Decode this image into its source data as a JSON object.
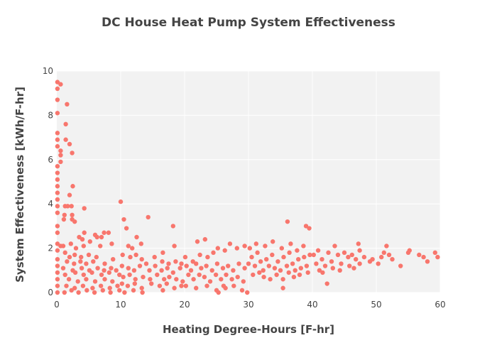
{
  "chart_data": {
    "type": "scatter",
    "title": "DC House Heat Pump System Effectiveness",
    "xlabel": "Heating Degree-Hours [F-hr]",
    "ylabel": "System Effectiveness [kWh/F-hr]",
    "xlim": [
      0,
      60
    ],
    "ylim": [
      0,
      10
    ],
    "xticks": [
      0,
      10,
      20,
      30,
      40,
      50,
      60
    ],
    "yticks": [
      0,
      2,
      4,
      6,
      8,
      10
    ],
    "grid": true,
    "legend": "none",
    "colors": {
      "marker": "#f8766d",
      "plot_bg": "#f2f2f2",
      "grid": "#ffffff",
      "text": "#444444"
    },
    "series": [
      {
        "points": [
          [
            0.1,
            9.5
          ],
          [
            0.1,
            9.2
          ],
          [
            0.6,
            9.4
          ],
          [
            0.1,
            8.7
          ],
          [
            0.1,
            8.1
          ],
          [
            1.6,
            8.5
          ],
          [
            1.4,
            7.6
          ],
          [
            0.1,
            7.2
          ],
          [
            0.1,
            6.9
          ],
          [
            1.4,
            6.9
          ],
          [
            0.1,
            6.6
          ],
          [
            2.0,
            6.7
          ],
          [
            0.6,
            6.4
          ],
          [
            2.4,
            6.3
          ],
          [
            0.6,
            6.2
          ],
          [
            0.6,
            5.9
          ],
          [
            0.1,
            5.7
          ],
          [
            0.1,
            5.4
          ],
          [
            0.1,
            5.1
          ],
          [
            0.1,
            4.8
          ],
          [
            2.5,
            4.8
          ],
          [
            0.1,
            4.5
          ],
          [
            2.0,
            4.4
          ],
          [
            0.1,
            4.2
          ],
          [
            0.1,
            3.9
          ],
          [
            1.3,
            3.9
          ],
          [
            1.7,
            3.9
          ],
          [
            2.3,
            3.9
          ],
          [
            4.3,
            3.8
          ],
          [
            0.1,
            3.6
          ],
          [
            1.2,
            3.5
          ],
          [
            2.4,
            3.5
          ],
          [
            1.1,
            3.3
          ],
          [
            2.4,
            3.3
          ],
          [
            2.8,
            3.2
          ],
          [
            0.1,
            3.0
          ],
          [
            0.1,
            2.7
          ],
          [
            4.3,
            2.7
          ],
          [
            6.0,
            2.6
          ],
          [
            7.4,
            2.7
          ],
          [
            8.1,
            2.7
          ],
          [
            3.5,
            2.5
          ],
          [
            4.0,
            2.4
          ],
          [
            5.2,
            2.3
          ],
          [
            6.3,
            2.5
          ],
          [
            7.0,
            2.5
          ],
          [
            0.1,
            2.2
          ],
          [
            0.6,
            2.1
          ],
          [
            1.0,
            2.1
          ],
          [
            2.2,
            2.2
          ],
          [
            3.0,
            2.0
          ],
          [
            4.2,
            2.1
          ],
          [
            6.8,
            2.1
          ],
          [
            8.6,
            2.2
          ],
          [
            0.1,
            1.9
          ],
          [
            1.3,
            1.8
          ],
          [
            2.0,
            1.6
          ],
          [
            2.8,
            1.7
          ],
          [
            3.8,
            1.6
          ],
          [
            5.0,
            1.7
          ],
          [
            6.2,
            1.6
          ],
          [
            0.1,
            1.5
          ],
          [
            1.6,
            1.4
          ],
          [
            2.7,
            1.3
          ],
          [
            3.7,
            1.4
          ],
          [
            4.6,
            1.3
          ],
          [
            5.7,
            1.4
          ],
          [
            7.5,
            1.3
          ],
          [
            8.8,
            1.5
          ],
          [
            0.1,
            1.2
          ],
          [
            1.0,
            1.1
          ],
          [
            2.5,
            1.0
          ],
          [
            3.9,
            1.1
          ],
          [
            5.1,
            1.0
          ],
          [
            6.4,
            1.1
          ],
          [
            7.4,
            1.0
          ],
          [
            8.5,
            1.1
          ],
          [
            9.3,
            1.0
          ],
          [
            0.1,
            0.9
          ],
          [
            1.3,
            0.8
          ],
          [
            2.9,
            0.9
          ],
          [
            4.2,
            0.8
          ],
          [
            5.5,
            0.9
          ],
          [
            7.0,
            0.8
          ],
          [
            8.2,
            0.9
          ],
          [
            9.8,
            0.8
          ],
          [
            0.1,
            0.6
          ],
          [
            1.9,
            0.6
          ],
          [
            3.3,
            0.5
          ],
          [
            4.6,
            0.6
          ],
          [
            6.0,
            0.5
          ],
          [
            7.5,
            0.6
          ],
          [
            8.7,
            0.5
          ],
          [
            0.1,
            0.3
          ],
          [
            1.5,
            0.3
          ],
          [
            2.8,
            0.2
          ],
          [
            4.1,
            0.3
          ],
          [
            5.6,
            0.2
          ],
          [
            6.9,
            0.3
          ],
          [
            8.3,
            0.2
          ],
          [
            9.5,
            0.3
          ],
          [
            0.1,
            0.0
          ],
          [
            1.2,
            0.0
          ],
          [
            2.3,
            0.1
          ],
          [
            3.4,
            0.0
          ],
          [
            4.7,
            0.1
          ],
          [
            5.9,
            0.0
          ],
          [
            7.2,
            0.1
          ],
          [
            8.4,
            0.0
          ],
          [
            9.8,
            0.1
          ],
          [
            10.0,
            4.1
          ],
          [
            10.5,
            3.3
          ],
          [
            10.9,
            2.9
          ],
          [
            11.2,
            2.1
          ],
          [
            11.8,
            2.0
          ],
          [
            12.5,
            2.5
          ],
          [
            13.2,
            2.2
          ],
          [
            14.3,
            3.4
          ],
          [
            10.3,
            1.7
          ],
          [
            11.5,
            1.6
          ],
          [
            12.4,
            1.7
          ],
          [
            13.3,
            1.5
          ],
          [
            14.0,
            1.3
          ],
          [
            15.3,
            1.6
          ],
          [
            16.5,
            1.4
          ],
          [
            17.5,
            1.3
          ],
          [
            18.6,
            1.4
          ],
          [
            19.5,
            1.3
          ],
          [
            10.2,
            1.2
          ],
          [
            11.2,
            1.1
          ],
          [
            12.1,
            1.0
          ],
          [
            13.0,
            1.2
          ],
          [
            14.5,
            1.0
          ],
          [
            15.4,
            1.2
          ],
          [
            16.4,
            1.0
          ],
          [
            17.3,
            1.1
          ],
          [
            18.2,
            0.9
          ],
          [
            19.3,
            1.1
          ],
          [
            10.4,
            0.7
          ],
          [
            11.4,
            0.8
          ],
          [
            12.3,
            0.6
          ],
          [
            13.5,
            0.7
          ],
          [
            14.6,
            0.6
          ],
          [
            15.7,
            0.8
          ],
          [
            16.8,
            0.6
          ],
          [
            17.6,
            0.7
          ],
          [
            18.7,
            0.6
          ],
          [
            19.7,
            0.5
          ],
          [
            10.2,
            0.4
          ],
          [
            11.1,
            0.3
          ],
          [
            12.2,
            0.4
          ],
          [
            13.3,
            0.2
          ],
          [
            14.8,
            0.4
          ],
          [
            16.1,
            0.3
          ],
          [
            17.2,
            0.4
          ],
          [
            18.4,
            0.2
          ],
          [
            19.5,
            0.3
          ],
          [
            10.6,
            0.0
          ],
          [
            12.0,
            0.1
          ],
          [
            13.4,
            0.0
          ],
          [
            16.6,
            0.1
          ],
          [
            18.2,
            3.0
          ],
          [
            18.4,
            2.1
          ],
          [
            16.6,
            1.8
          ],
          [
            20.1,
            1.6
          ],
          [
            21.3,
            1.4
          ],
          [
            22.0,
            2.3
          ],
          [
            23.2,
            2.4
          ],
          [
            22.4,
            1.7
          ],
          [
            23.6,
            1.6
          ],
          [
            24.5,
            1.8
          ],
          [
            25.2,
            2.0
          ],
          [
            26.3,
            1.9
          ],
          [
            27.1,
            2.2
          ],
          [
            28.2,
            2.0
          ],
          [
            29.4,
            2.1
          ],
          [
            20.3,
            1.2
          ],
          [
            21.0,
            1.0
          ],
          [
            21.8,
            1.3
          ],
          [
            22.6,
            1.1
          ],
          [
            23.4,
            1.2
          ],
          [
            24.3,
            1.0
          ],
          [
            25.1,
            1.3
          ],
          [
            26.0,
            1.1
          ],
          [
            26.8,
            1.2
          ],
          [
            27.6,
            1.0
          ],
          [
            28.5,
            1.3
          ],
          [
            29.4,
            1.1
          ],
          [
            20.6,
            0.8
          ],
          [
            21.4,
            0.6
          ],
          [
            22.3,
            0.8
          ],
          [
            23.1,
            0.7
          ],
          [
            24.0,
            0.5
          ],
          [
            24.9,
            0.8
          ],
          [
            25.7,
            0.6
          ],
          [
            26.5,
            0.8
          ],
          [
            27.4,
            0.6
          ],
          [
            28.3,
            0.7
          ],
          [
            29.2,
            0.5
          ],
          [
            20.2,
            0.3
          ],
          [
            21.8,
            0.2
          ],
          [
            23.5,
            0.3
          ],
          [
            25.0,
            0.1
          ],
          [
            26.4,
            0.2
          ],
          [
            27.7,
            0.3
          ],
          [
            29.0,
            0.1
          ],
          [
            25.3,
            0.0
          ],
          [
            26.1,
            0.3
          ],
          [
            29.8,
            0.0
          ],
          [
            30.0,
            1.3
          ],
          [
            30.5,
            1.6
          ],
          [
            31.0,
            1.2
          ],
          [
            31.4,
            1.8
          ],
          [
            31.9,
            1.4
          ],
          [
            32.3,
            1.0
          ],
          [
            32.8,
            1.5
          ],
          [
            33.2,
            1.2
          ],
          [
            33.7,
            1.7
          ],
          [
            34.1,
            1.1
          ],
          [
            34.6,
            1.4
          ],
          [
            35.0,
            1.0
          ],
          [
            35.5,
            1.6
          ],
          [
            36.0,
            1.2
          ],
          [
            36.4,
            1.8
          ],
          [
            36.9,
            1.3
          ],
          [
            37.3,
            1.0
          ],
          [
            37.8,
            1.5
          ],
          [
            38.2,
            1.1
          ],
          [
            38.7,
            1.6
          ],
          [
            39.1,
            1.2
          ],
          [
            39.6,
            1.7
          ],
          [
            30.2,
            2.0
          ],
          [
            31.2,
            2.2
          ],
          [
            32.6,
            2.1
          ],
          [
            33.8,
            2.3
          ],
          [
            35.2,
            2.0
          ],
          [
            36.1,
            3.2
          ],
          [
            36.6,
            2.2
          ],
          [
            37.6,
            1.9
          ],
          [
            38.6,
            2.1
          ],
          [
            39.0,
            3.0
          ],
          [
            39.5,
            2.9
          ],
          [
            30.7,
            0.8
          ],
          [
            31.7,
            0.9
          ],
          [
            32.4,
            0.7
          ],
          [
            33.4,
            0.6
          ],
          [
            34.4,
            0.8
          ],
          [
            35.4,
            0.6
          ],
          [
            35.4,
            0.2
          ],
          [
            36.3,
            0.9
          ],
          [
            37.1,
            0.7
          ],
          [
            38.0,
            0.8
          ],
          [
            39.3,
            0.9
          ],
          [
            40.2,
            1.7
          ],
          [
            40.6,
            1.3
          ],
          [
            41.1,
            1.0
          ],
          [
            41.5,
            1.5
          ],
          [
            42.0,
            1.2
          ],
          [
            42.3,
            0.4
          ],
          [
            42.5,
            1.8
          ],
          [
            43.0,
            1.4
          ],
          [
            43.5,
            2.1
          ],
          [
            44.0,
            1.7
          ],
          [
            44.5,
            1.3
          ],
          [
            45.0,
            1.8
          ],
          [
            45.6,
            1.6
          ],
          [
            46.2,
            1.7
          ],
          [
            46.8,
            1.5
          ],
          [
            47.2,
            2.2
          ],
          [
            47.4,
            1.3
          ],
          [
            47.4,
            1.9
          ],
          [
            49.4,
            1.5
          ],
          [
            50.3,
            1.3
          ],
          [
            50.8,
            1.6
          ],
          [
            51.2,
            1.8
          ],
          [
            51.6,
            2.1
          ],
          [
            52.0,
            1.7
          ],
          [
            53.8,
            1.2
          ],
          [
            55.0,
            1.8
          ],
          [
            56.7,
            1.7
          ],
          [
            57.4,
            1.6
          ],
          [
            59.2,
            1.8
          ],
          [
            59.6,
            1.6
          ],
          [
            40.9,
            1.9
          ],
          [
            41.6,
            0.9
          ],
          [
            43.2,
            1.1
          ],
          [
            44.3,
            1.0
          ],
          [
            45.8,
            1.2
          ],
          [
            46.5,
            1.1
          ],
          [
            48.1,
            1.6
          ],
          [
            49.0,
            1.4
          ],
          [
            52.5,
            1.5
          ],
          [
            55.2,
            1.9
          ],
          [
            58.0,
            1.4
          ]
        ]
      }
    ]
  }
}
